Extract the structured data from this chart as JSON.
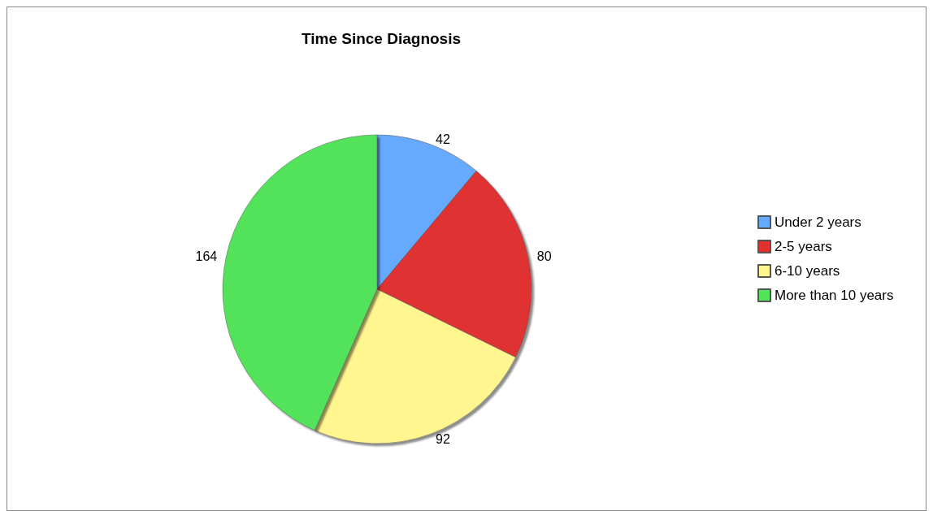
{
  "chart_data": {
    "type": "pie",
    "title": "Time Since Diagnosis",
    "categories": [
      "Under 2 years",
      "2-5 years",
      "6-10 years",
      "More than 10 years"
    ],
    "values": [
      42,
      80,
      92,
      164
    ],
    "colors": [
      "#66aaff",
      "#e03030",
      "#fff68f",
      "#52e35a"
    ],
    "data_labels": true,
    "legend": "right"
  }
}
